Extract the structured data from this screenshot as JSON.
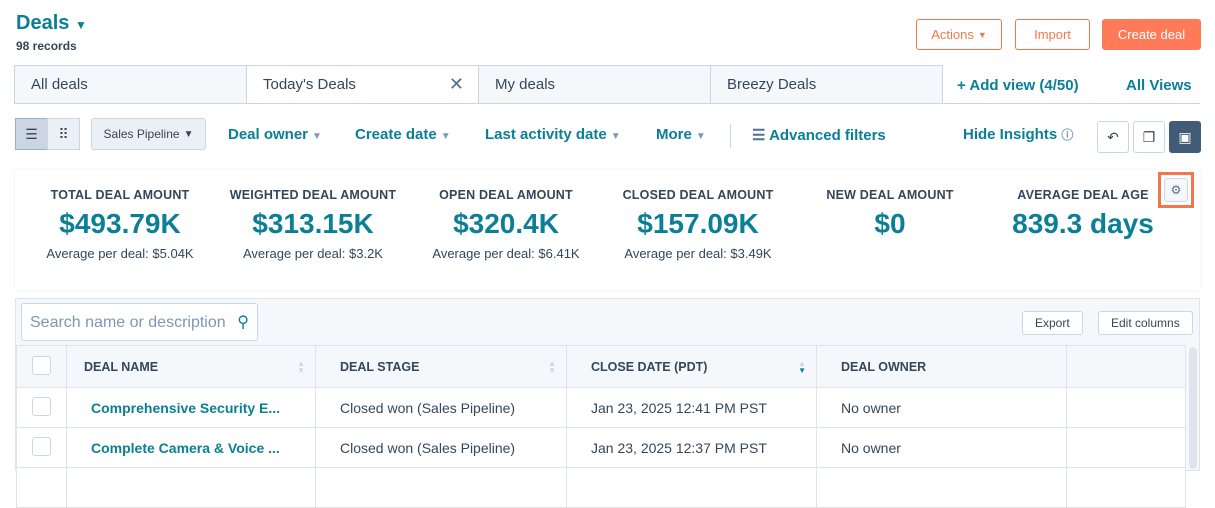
{
  "header": {
    "title": "Deals",
    "records": "98 records",
    "actions": "Actions",
    "import": "Import",
    "create": "Create deal"
  },
  "tabs": [
    {
      "label": "All deals"
    },
    {
      "label": "Today's Deals"
    },
    {
      "label": "My deals"
    },
    {
      "label": "Breezy Deals"
    }
  ],
  "add_view": "+ Add view (4/50)",
  "all_views": "All Views",
  "filters": {
    "pipeline": "Sales Pipeline",
    "deal_owner": "Deal owner",
    "create_date": "Create date",
    "last_activity": "Last activity date",
    "more": "More",
    "advanced": "Advanced filters",
    "hide_insights": "Hide Insights"
  },
  "insights": [
    {
      "label": "TOTAL DEAL AMOUNT",
      "value": "$493.79K",
      "sub": "Average per deal: $5.04K"
    },
    {
      "label": "WEIGHTED DEAL AMOUNT",
      "value": "$313.15K",
      "sub": "Average per deal: $3.2K"
    },
    {
      "label": "OPEN DEAL AMOUNT",
      "value": "$320.4K",
      "sub": "Average per deal: $6.41K"
    },
    {
      "label": "CLOSED DEAL AMOUNT",
      "value": "$157.09K",
      "sub": "Average per deal: $3.49K"
    },
    {
      "label": "NEW DEAL AMOUNT",
      "value": "$0",
      "sub": ""
    },
    {
      "label": "AVERAGE DEAL AGE",
      "value": "839.3 days",
      "sub": ""
    }
  ],
  "table": {
    "search_placeholder": "Search name or description",
    "export": "Export",
    "edit_columns": "Edit columns",
    "columns": [
      "DEAL NAME",
      "DEAL STAGE",
      "CLOSE DATE (PDT)",
      "DEAL OWNER"
    ],
    "rows": [
      {
        "name": "Comprehensive Security E...",
        "stage": "Closed won (Sales Pipeline)",
        "close": "Jan 23, 2025 12:41 PM PST",
        "owner": "No owner"
      },
      {
        "name": "Complete Camera & Voice ...",
        "stage": "Closed won (Sales Pipeline)",
        "close": "Jan 23, 2025 12:37 PM PST",
        "owner": "No owner"
      }
    ]
  }
}
